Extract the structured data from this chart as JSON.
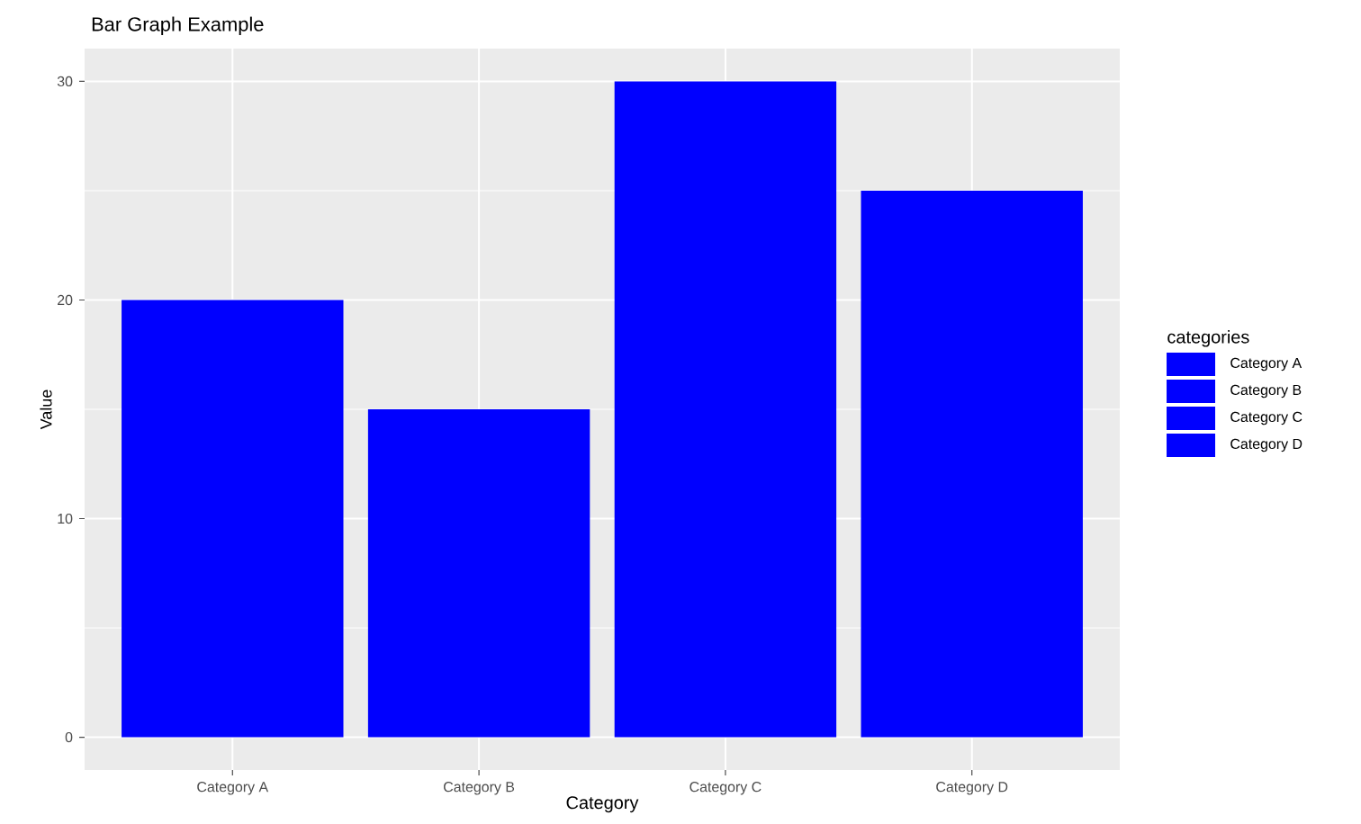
{
  "chart_data": {
    "type": "bar",
    "title": "Bar Graph Example",
    "xlabel": "Category",
    "ylabel": "Value",
    "legend_title": "categories",
    "categories": [
      "Category A",
      "Category B",
      "Category C",
      "Category D"
    ],
    "stacked": true,
    "series": [
      {
        "name": "Category A",
        "color": "#0000ff",
        "values": [
          20,
          null,
          null,
          null
        ]
      },
      {
        "name": "Category B",
        "color": "#0000ff",
        "values": [
          null,
          15,
          null,
          null
        ]
      },
      {
        "name": "Category C",
        "color": "#0000ff",
        "values": [
          null,
          null,
          30,
          null
        ]
      },
      {
        "name": "Category D",
        "color": "#0000ff",
        "values": [
          null,
          null,
          null,
          25
        ]
      }
    ],
    "ylim": [
      -1.5,
      31.5
    ],
    "yticks": [
      0,
      10,
      20,
      30
    ],
    "grid": true,
    "legend": "right"
  }
}
